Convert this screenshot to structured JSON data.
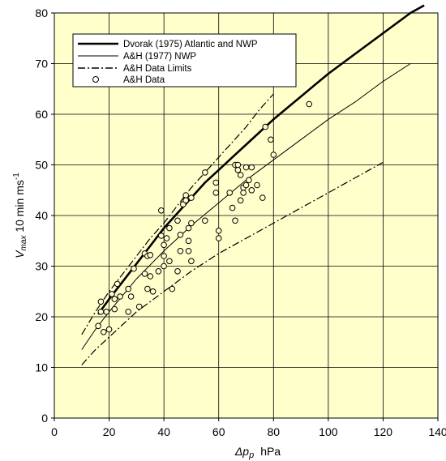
{
  "chart_data": {
    "type": "line",
    "title": "",
    "xlabel_main": "Δp",
    "xlabel_unit": "hPa",
    "ylabel_main": "V",
    "ylabel_sub": "max",
    "ylabel_rest": " 10 min  ms",
    "ylabel_sup": "-1",
    "xlim": [
      0,
      140
    ],
    "ylim": [
      0,
      80
    ],
    "xticks": [
      "0",
      "20",
      "40",
      "60",
      "80",
      "100",
      "120",
      "140"
    ],
    "yticks": [
      "0",
      "10",
      "20",
      "30",
      "40",
      "50",
      "60",
      "70",
      "80"
    ],
    "grid": "vertical-and-horizontal",
    "legend_position": "top-left",
    "plot_background": "#ffffcc",
    "series": [
      {
        "name": "Dvorak (1975) Atlantic and NWP",
        "style": "thick-solid",
        "x": [
          16,
          20,
          25,
          30,
          35,
          40,
          45,
          50,
          55,
          60,
          65,
          70,
          80,
          90,
          100,
          110,
          120,
          130,
          135
        ],
        "y": [
          20.5,
          23.5,
          27,
          30.5,
          34,
          37.5,
          40.5,
          43.5,
          46.5,
          49,
          51.5,
          54,
          59,
          63.5,
          68,
          72,
          76,
          80,
          81.5
        ]
      },
      {
        "name": "A&H (1977) NWP",
        "style": "thin-solid",
        "x": [
          10,
          15,
          20,
          30,
          40,
          50,
          60,
          70,
          80,
          90,
          100,
          110,
          120,
          130
        ],
        "y": [
          13.5,
          17.5,
          21,
          27.5,
          33,
          38,
          42.5,
          47,
          51,
          55,
          59,
          62.5,
          66.5,
          70
        ]
      },
      {
        "name": "A&H Data Limits",
        "style": "dash-dot",
        "x": [
          10,
          15,
          20,
          25,
          30,
          35,
          40,
          45,
          50,
          55,
          60,
          65,
          70,
          75,
          80
        ],
        "y": [
          16.5,
          21,
          25,
          28.5,
          32,
          35.5,
          38.5,
          42,
          45.5,
          48.5,
          51.5,
          54.5,
          57.5,
          61,
          64
        ],
        "x2": [
          10,
          15,
          20,
          30,
          40,
          50,
          60,
          70,
          80,
          90,
          100,
          110,
          120
        ],
        "y2": [
          10.5,
          13.5,
          16,
          21,
          25,
          29,
          32.5,
          35.5,
          38.5,
          41.5,
          44.5,
          47.5,
          50.5
        ]
      },
      {
        "name": "A&H Data",
        "style": "open-circle",
        "points": [
          [
            16,
            18.2
          ],
          [
            17,
            23
          ],
          [
            17,
            21
          ],
          [
            18,
            17
          ],
          [
            19,
            21
          ],
          [
            20,
            17.5
          ],
          [
            21,
            24.5
          ],
          [
            22,
            21.5
          ],
          [
            22,
            23.5
          ],
          [
            23,
            26.5
          ],
          [
            24,
            24
          ],
          [
            27,
            25.5
          ],
          [
            27,
            21
          ],
          [
            28,
            24
          ],
          [
            29,
            29.5
          ],
          [
            31,
            22
          ],
          [
            33,
            32.5
          ],
          [
            33,
            28.5
          ],
          [
            34,
            25.5
          ],
          [
            34,
            32
          ],
          [
            35,
            32.2
          ],
          [
            35,
            28
          ],
          [
            36,
            25
          ],
          [
            38,
            29
          ],
          [
            39,
            41
          ],
          [
            39,
            36
          ],
          [
            40,
            34.2
          ],
          [
            40,
            32
          ],
          [
            40,
            30
          ],
          [
            41,
            35.5
          ],
          [
            42,
            37.5
          ],
          [
            42,
            31
          ],
          [
            43,
            25.5
          ],
          [
            45,
            39
          ],
          [
            45,
            29
          ],
          [
            46,
            36.2
          ],
          [
            46,
            33
          ],
          [
            47,
            42.2
          ],
          [
            48,
            44
          ],
          [
            48,
            43
          ],
          [
            49,
            37.5
          ],
          [
            49,
            35
          ],
          [
            49,
            33
          ],
          [
            50,
            43.5
          ],
          [
            50,
            38.5
          ],
          [
            50,
            31
          ],
          [
            55,
            48.5
          ],
          [
            55,
            39
          ],
          [
            59,
            46.5
          ],
          [
            59,
            44.5
          ],
          [
            60,
            35.5
          ],
          [
            60,
            37
          ],
          [
            64,
            44.5
          ],
          [
            65,
            41.5
          ],
          [
            66,
            50
          ],
          [
            66,
            39
          ],
          [
            67,
            50
          ],
          [
            67,
            49
          ],
          [
            68,
            48
          ],
          [
            68,
            43
          ],
          [
            69,
            44.5
          ],
          [
            69,
            45.5
          ],
          [
            70,
            49.5
          ],
          [
            70,
            46
          ],
          [
            71,
            47
          ],
          [
            72,
            49.5
          ],
          [
            72,
            45
          ],
          [
            74,
            46
          ],
          [
            76,
            43.5
          ],
          [
            77,
            57.5
          ],
          [
            79,
            55
          ],
          [
            80,
            52
          ],
          [
            93,
            62
          ]
        ]
      }
    ]
  }
}
